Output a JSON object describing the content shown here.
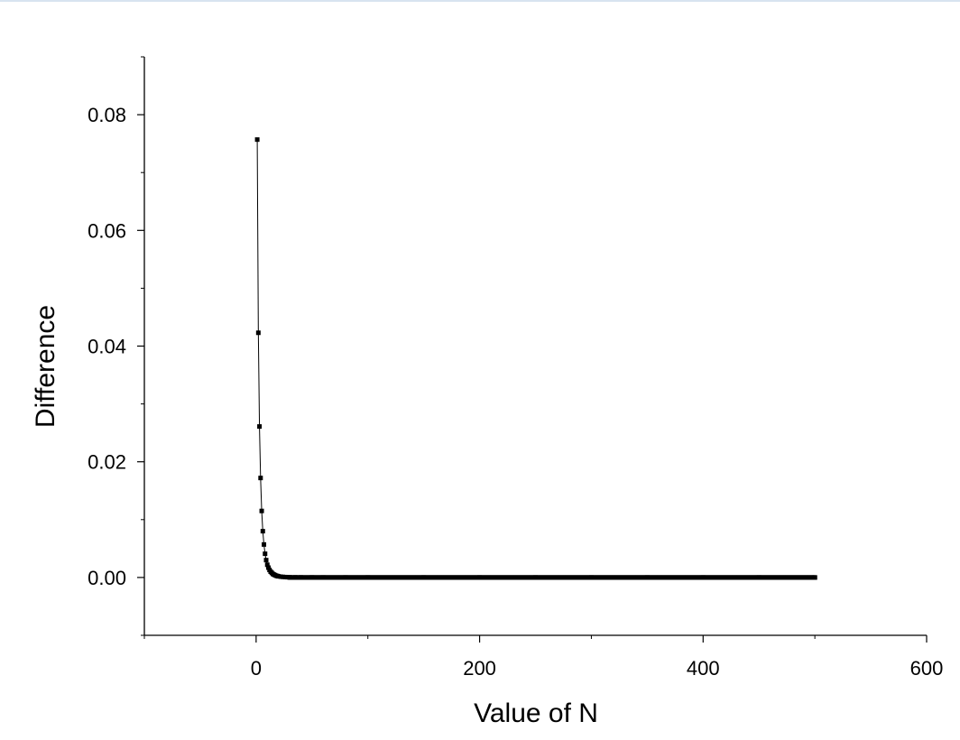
{
  "chart_data": {
    "type": "scatter",
    "title": "",
    "xlabel": "Value of N",
    "ylabel": "Difference",
    "xlim": [
      -100,
      600
    ],
    "ylim": [
      -0.01,
      0.09
    ],
    "x_ticks": [
      0,
      200,
      400,
      600
    ],
    "x_tick_labels": [
      "0",
      "200",
      "400",
      "600"
    ],
    "y_ticks": [
      0.0,
      0.02,
      0.04,
      0.06,
      0.08
    ],
    "y_tick_labels": [
      "0.00",
      "0.02",
      "0.04",
      "0.06",
      "0.08"
    ],
    "grid": false,
    "legend": "none",
    "marker": "square",
    "connected": true,
    "color": "#000000",
    "series": [
      {
        "x": [
          1,
          2,
          3,
          4,
          5,
          6,
          7,
          8,
          9,
          10,
          11,
          12,
          13,
          14,
          15,
          16,
          17,
          18,
          19,
          20,
          22,
          24,
          26,
          28,
          30,
          35,
          40,
          50,
          60,
          80,
          100,
          150,
          200,
          250,
          300,
          350,
          400,
          450,
          500
        ],
        "y": [
          0.0757,
          0.0423,
          0.0261,
          0.0172,
          0.0115,
          0.008,
          0.0057,
          0.0041,
          0.003,
          0.0022,
          0.0017,
          0.0013,
          0.001,
          0.0008,
          0.0006,
          0.0005,
          0.0004,
          0.0003,
          0.00025,
          0.0002,
          0.00014,
          0.0001,
          7e-05,
          5e-05,
          4e-05,
          2e-05,
          1e-05,
          5e-06,
          0.0,
          0.0,
          0.0,
          0.0,
          0.0,
          0.0,
          0.0,
          0.0,
          0.0,
          0.0,
          0.0
        ]
      }
    ]
  }
}
